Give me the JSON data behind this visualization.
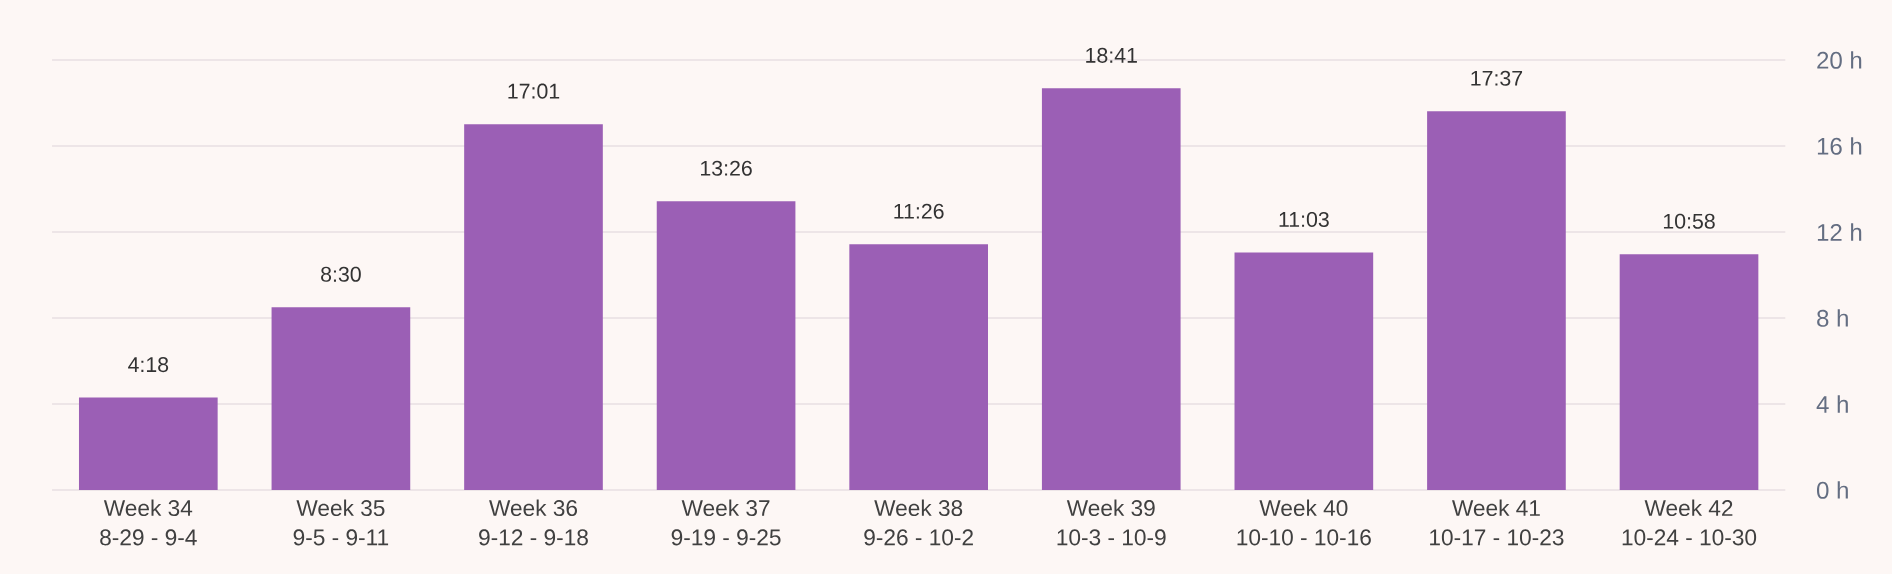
{
  "chart_data": {
    "type": "bar",
    "categories": [
      "Week 34\n8-29 - 9-4",
      "Week 35\n9-5 - 9-11",
      "Week 36\n9-12 - 9-18",
      "Week 37\n9-19 - 9-25",
      "Week 38\n9-26 - 10-2",
      "Week 39\n10-3 - 10-9",
      "Week 40\n10-10 - 10-16",
      "Week 41\n10-17 - 10-23",
      "Week 42\n10-24 - 10-30"
    ],
    "values": [
      4.3,
      8.5,
      17.017,
      13.433,
      11.433,
      18.683,
      11.05,
      17.617,
      10.967
    ],
    "value_labels": [
      "4:18",
      "8:30",
      "17:01",
      "13:26",
      "11:26",
      "18:41",
      "11:03",
      "17:37",
      "10:58"
    ],
    "color": "#9b5fb5",
    "ylim": [
      0,
      20
    ],
    "yticks": [
      {
        "value": 0,
        "label": "0 h"
      },
      {
        "value": 4,
        "label": "4 h"
      },
      {
        "value": 8,
        "label": "8 h"
      },
      {
        "value": 12,
        "label": "12 h"
      },
      {
        "value": 16,
        "label": "16 h"
      },
      {
        "value": 20,
        "label": "20 h"
      }
    ],
    "grid": "y"
  }
}
